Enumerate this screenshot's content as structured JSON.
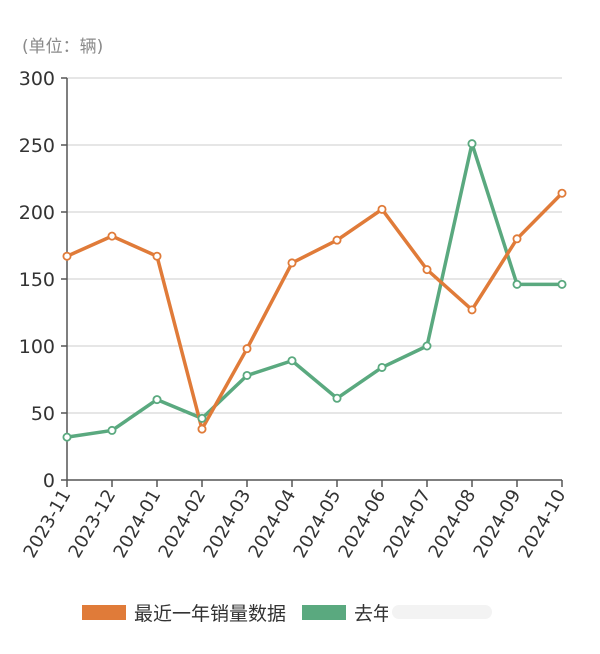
{
  "unit_label": "(单位：辆)",
  "chart_data": {
    "type": "line",
    "title": "",
    "xlabel": "",
    "ylabel": "(单位：辆)",
    "categories": [
      "2023-11",
      "2023-12",
      "2024-01",
      "2024-02",
      "2024-03",
      "2024-04",
      "2024-05",
      "2024-06",
      "2024-07",
      "2024-08",
      "2024-09",
      "2024-10"
    ],
    "ylim": [
      0,
      300
    ],
    "yticks": [
      0,
      50,
      100,
      150,
      200,
      250,
      300
    ],
    "grid": true,
    "legend_position": "bottom",
    "series": [
      {
        "name": "最近一年销量数据",
        "color": "#e07b39",
        "values": [
          167,
          182,
          167,
          38,
          98,
          162,
          179,
          202,
          157,
          127,
          180,
          214
        ]
      },
      {
        "name": "去年",
        "color": "#5aa97f",
        "values": [
          32,
          37,
          60,
          46,
          78,
          89,
          61,
          84,
          100,
          251,
          146,
          146
        ]
      }
    ]
  },
  "legend": [
    {
      "label": "最近一年销量数据"
    },
    {
      "label": "去年"
    }
  ]
}
